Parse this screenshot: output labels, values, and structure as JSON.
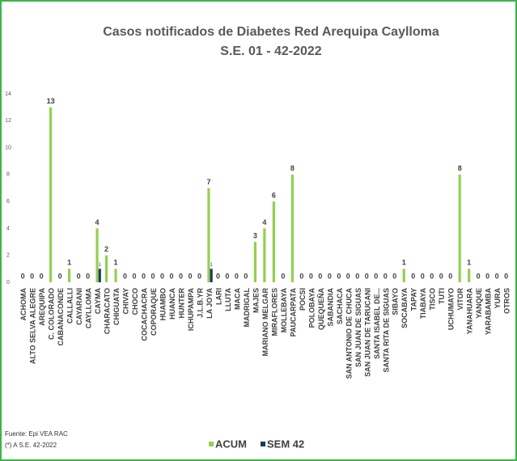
{
  "chart_data": {
    "type": "bar",
    "title": "Casos notificados de Diabetes  Red Arequipa Caylloma",
    "subtitle": "S.E. 01 - 42-2022",
    "categories": [
      "ACHOMA",
      "ALTO SELVA ALEGRE",
      "AREQUIPA",
      "C. COLORADO",
      "CABANACONDE",
      "CALLALLI",
      "CAYARANI",
      "CAYLLOMA",
      "CAYMA",
      "CHARACATO",
      "CHIGUATA",
      "CHIVAY",
      "CHOCO",
      "COCACHACRA",
      "COPORAQUE",
      "HUAMBO",
      "HUANCA",
      "HUNTER",
      "ICHUPAMPA",
      "J.L.B.YR",
      "LA JOYA",
      "LARI",
      "LLUTA",
      "MACA",
      "MADRIGAL",
      "MAJES",
      "MARIANO MELGAR",
      "MIRAFLORES",
      "MOLLEBAYA",
      "PAUCARPATA",
      "POCSI",
      "POLOBAYA",
      "QUEQUEÑA",
      "SABANDIA",
      "SACHACA",
      "SAN ANTONIO DE CHUCA",
      "SAN JUAN DE SIGUAS",
      "SAN JUAN DE TARUCANI",
      "SANTA ISABEL DE...",
      "SANTA RITA DE SIGUAS",
      "SIBAYO",
      "SOCABAYA",
      "TAPAY",
      "TIABAYA",
      "TISCO",
      "TUTI",
      "UCHUMAYO",
      "VITOR",
      "YANAHUARA",
      "YANQUE",
      "YARABAMBA",
      "YURA",
      "OTROS"
    ],
    "series": [
      {
        "name": "ACUM",
        "color": "#92d050",
        "values": [
          0,
          0,
          0,
          13,
          0,
          1,
          0,
          0,
          4,
          2,
          1,
          0,
          0,
          0,
          0,
          0,
          0,
          0,
          0,
          0,
          7,
          0,
          0,
          0,
          0,
          3,
          4,
          6,
          0,
          8,
          0,
          0,
          0,
          0,
          0,
          0,
          0,
          0,
          0,
          0,
          0,
          1,
          0,
          0,
          0,
          0,
          0,
          8,
          1,
          0,
          0,
          0,
          0
        ]
      },
      {
        "name": "SEM 42",
        "color": "#1f3864",
        "values": [
          0,
          0,
          0,
          0,
          0,
          0,
          0,
          0,
          1,
          0,
          0,
          0,
          0,
          0,
          0,
          0,
          0,
          0,
          0,
          0,
          1,
          0,
          0,
          0,
          0,
          0,
          0,
          0,
          0,
          0,
          0,
          0,
          0,
          0,
          0,
          0,
          0,
          0,
          0,
          0,
          0,
          0,
          0,
          0,
          0,
          0,
          0,
          0,
          0,
          0,
          0,
          0,
          0
        ]
      }
    ],
    "ylim": [
      0,
      14
    ],
    "yticks": [
      0,
      2,
      4,
      6,
      8,
      10,
      12,
      14
    ],
    "grid": false,
    "source": "Fuente: Epi VEA RAC",
    "note": "(*) A S.E. 42-2022"
  }
}
